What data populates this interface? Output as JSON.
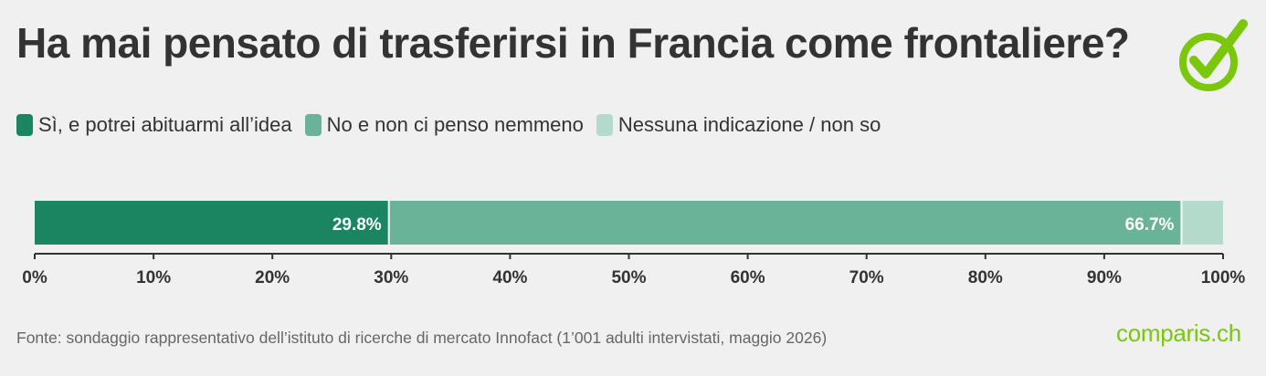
{
  "header": {
    "title": "Ha mai pensato di trasferirsi in Francia come frontaliere?"
  },
  "legend": [
    {
      "label": "Sì, e potrei abituarmi all’idea",
      "color": "#1a8560"
    },
    {
      "label": "No e non ci penso nemmeno",
      "color": "#6ab398"
    },
    {
      "label": "Nessuna indicazione / non so",
      "color": "#b4dacb"
    }
  ],
  "chart_data": {
    "type": "bar",
    "orientation": "horizontal",
    "stacked": true,
    "categories": [
      ""
    ],
    "series": [
      {
        "name": "Sì, e potrei abituarmi all’idea",
        "values": [
          29.8
        ],
        "color": "#1a8560",
        "label": "29.8%"
      },
      {
        "name": "No e non ci penso nemmeno",
        "values": [
          66.7
        ],
        "color": "#6ab398",
        "label": "66.7%"
      },
      {
        "name": "Nessuna indicazione / non so",
        "values": [
          3.5
        ],
        "color": "#b4dacb",
        "label": ""
      }
    ],
    "xlim": [
      0,
      100
    ],
    "x_ticks": [
      "0%",
      "10%",
      "20%",
      "30%",
      "40%",
      "50%",
      "60%",
      "70%",
      "80%",
      "90%",
      "100%"
    ],
    "grid": false,
    "legend_position": "top-left"
  },
  "footer": {
    "source": "Fonte: sondaggio rappresentativo dell’istituto di ricerche di mercato Innofact (1’001 adulti intervistati, maggio 2026)",
    "brand": "comparis.ch",
    "brand_color": "#7ac70c"
  }
}
